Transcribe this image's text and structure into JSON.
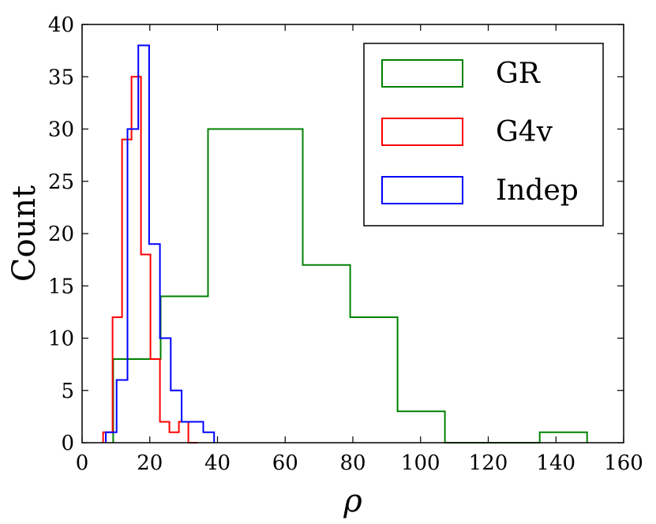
{
  "chart_data": {
    "type": "histogram",
    "xlabel": "ρ",
    "ylabel": "Count",
    "xlim": [
      0,
      160
    ],
    "ylim": [
      0,
      40
    ],
    "xticks": [
      0,
      20,
      40,
      60,
      80,
      100,
      120,
      140,
      160
    ],
    "yticks": [
      0,
      5,
      10,
      15,
      20,
      25,
      30,
      35,
      40
    ],
    "xtick_labels": [
      "0",
      "20",
      "40",
      "60",
      "80",
      "100",
      "120",
      "140",
      "160"
    ],
    "ytick_labels": [
      "0",
      "5",
      "10",
      "15",
      "20",
      "25",
      "30",
      "35",
      "40"
    ],
    "legend_position": "upper-right",
    "series": [
      {
        "name": "GR",
        "color": "#008000",
        "edges": [
          9.2,
          23.2,
          37.2,
          51.2,
          65.2,
          79.2,
          93.2,
          107.2,
          121.2,
          135.2,
          149.2
        ],
        "counts": [
          8,
          14,
          30,
          30,
          17,
          12,
          3,
          0,
          0,
          1
        ]
      },
      {
        "name": "G4v",
        "color": "#ff0000",
        "edges": [
          6.2,
          9,
          11.8,
          14.6,
          17.4,
          20.2,
          23,
          25.8,
          28.6,
          31.4,
          34.2
        ],
        "counts": [
          1,
          12,
          29,
          35,
          18,
          8,
          2,
          1,
          2,
          0
        ]
      },
      {
        "name": "Indep",
        "color": "#0000ff",
        "edges": [
          7,
          10.2,
          13.4,
          16.6,
          19.8,
          23,
          26.2,
          29.4,
          32.6,
          35.8,
          39
        ],
        "counts": [
          1,
          6,
          30,
          38,
          19,
          10,
          5,
          2,
          2,
          1
        ]
      }
    ]
  }
}
